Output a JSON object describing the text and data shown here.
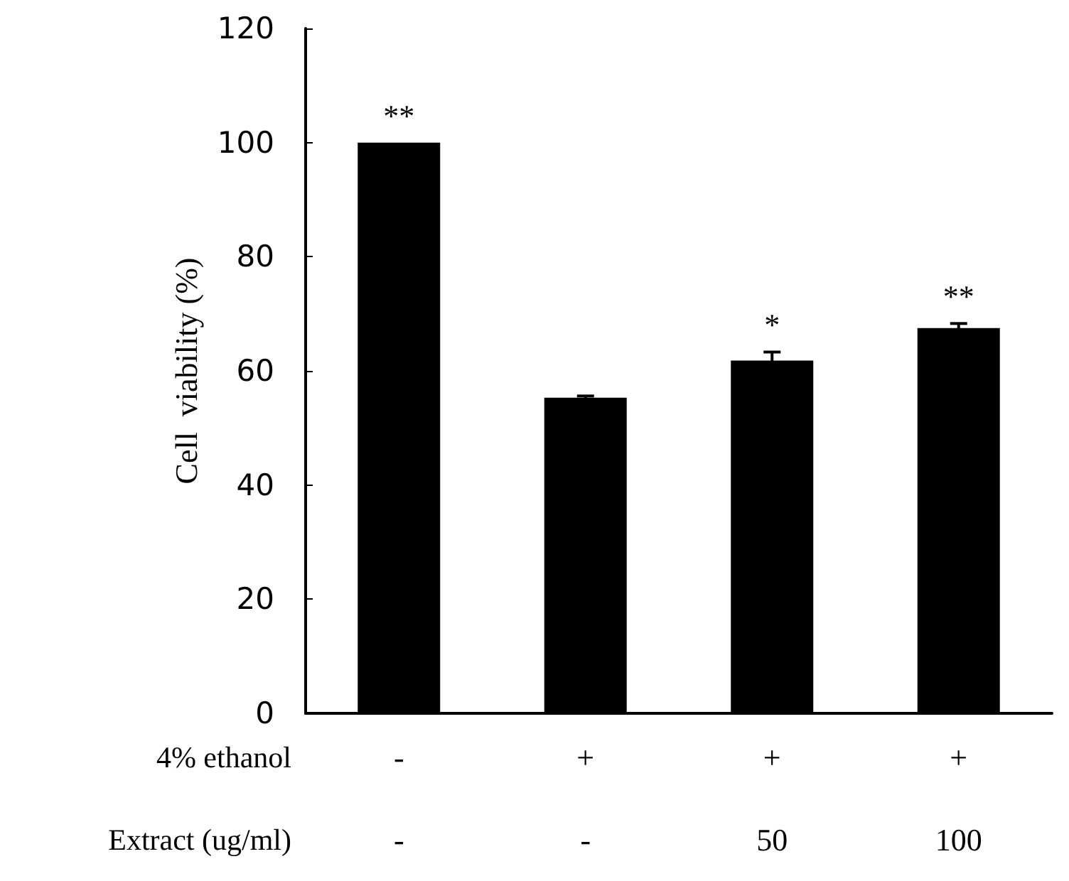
{
  "chart_data": {
    "type": "bar",
    "ylabel": "Cell  viability (%)",
    "categories": [
      "-\n-",
      "+\n-",
      "+\n50",
      "+\n100"
    ],
    "values": [
      100,
      55.3,
      61.8,
      67.5
    ],
    "errors": [
      null,
      0.3,
      1.5,
      0.8
    ],
    "color": "#000000",
    "ylim": [
      0,
      120
    ],
    "yticks": [
      0,
      20,
      40,
      60,
      80,
      100,
      120
    ],
    "grid": false,
    "annotations": [
      "4% ethanol",
      "Extract (ug/ml)",
      {
        "text": "**",
        "x": "-\n-",
        "y": 100
      },
      {
        "text": "*",
        "x": "+\n50",
        "y": 61.8
      },
      {
        "text": "**",
        "x": "+\n100",
        "y": 67.5
      }
    ]
  }
}
